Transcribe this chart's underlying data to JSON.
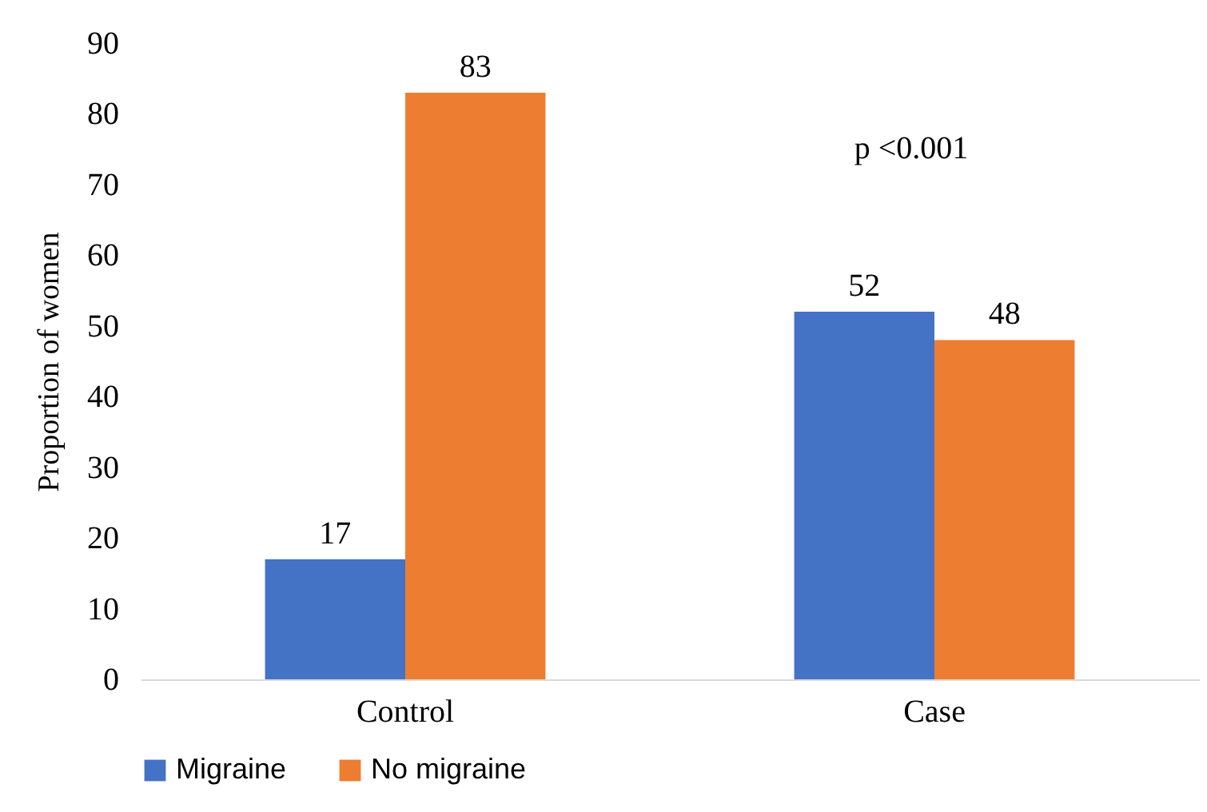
{
  "chart_data": {
    "type": "bar",
    "ylabel": "Proportion of women",
    "categories": [
      "Control",
      "Case"
    ],
    "series": [
      {
        "name": "Migraine",
        "color": "#4472c4",
        "values": [
          17,
          52
        ]
      },
      {
        "name": "No migraine",
        "color": "#ed7d31",
        "values": [
          83,
          48
        ]
      }
    ],
    "ylim": [
      0,
      90
    ],
    "yticks": [
      0,
      10,
      20,
      30,
      40,
      50,
      60,
      70,
      80,
      90
    ],
    "data_labels": true,
    "legend": "bottom",
    "annotations": [
      "p <0.001"
    ]
  }
}
